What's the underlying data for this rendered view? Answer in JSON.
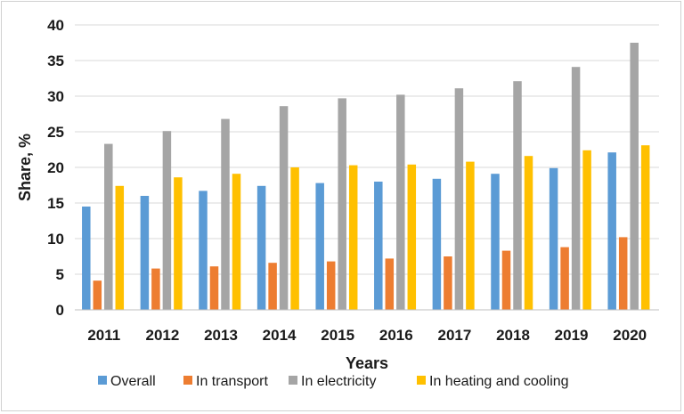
{
  "chart_data": {
    "type": "bar",
    "title": "",
    "xlabel": "Years",
    "ylabel": "Share, %",
    "ylim": [
      0,
      40
    ],
    "yticks": [
      "0",
      "5",
      "10",
      "15",
      "20",
      "25",
      "30",
      "35",
      "40"
    ],
    "categories": [
      "2011",
      "2012",
      "2013",
      "2014",
      "2015",
      "2016",
      "2017",
      "2018",
      "2019",
      "2020"
    ],
    "series": [
      {
        "name": "Overall",
        "color": "#5b9bd5",
        "values": [
          14.5,
          16.0,
          16.7,
          17.4,
          17.8,
          18.0,
          18.4,
          19.1,
          19.9,
          22.1
        ]
      },
      {
        "name": "In transport",
        "color": "#ed7d31",
        "values": [
          4.1,
          5.8,
          6.1,
          6.6,
          6.8,
          7.2,
          7.5,
          8.3,
          8.8,
          10.2
        ]
      },
      {
        "name": "In electricity",
        "color": "#a5a5a5",
        "values": [
          23.3,
          25.1,
          26.8,
          28.6,
          29.7,
          30.2,
          31.1,
          32.1,
          34.1,
          37.5
        ]
      },
      {
        "name": "In heating and cooling",
        "color": "#ffc000",
        "values": [
          17.4,
          18.6,
          19.1,
          20.0,
          20.3,
          20.4,
          20.8,
          21.6,
          22.4,
          23.1
        ]
      }
    ],
    "grid": true,
    "legend_position": "bottom"
  }
}
